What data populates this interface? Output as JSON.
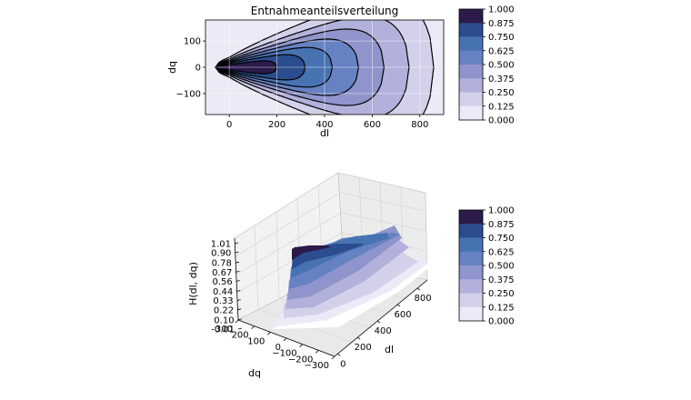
{
  "chart_data": [
    {
      "type": "contourf",
      "title": "Entnahmeanteilsverteilung",
      "xlabel": "dl",
      "ylabel": "dq",
      "xlim": [
        -100,
        900
      ],
      "ylim": [
        -180,
        180
      ],
      "xticks": [
        0,
        200,
        400,
        600,
        800
      ],
      "yticks": [
        -100,
        0,
        100
      ],
      "xtick_labels": [
        "0",
        "200",
        "400",
        "600",
        "800"
      ],
      "ytick_labels": [
        "−100",
        "0",
        "100"
      ],
      "grid": true,
      "levels": [
        0.0,
        0.125,
        0.25,
        0.375,
        0.5,
        0.625,
        0.75,
        0.875,
        1.0
      ],
      "colorbar": {
        "tick_labels": [
          "1.000",
          "0.875",
          "0.750",
          "0.625",
          "0.500",
          "0.375",
          "0.250",
          "0.125",
          "0.000"
        ]
      }
    },
    {
      "type": "surface3d",
      "xlabel": "dl",
      "ylabel": "dq",
      "zlabel": "H(dl, dq)",
      "xticks": [
        0,
        200,
        400,
        600,
        800
      ],
      "xtick_labels": [
        "0",
        "200",
        "400",
        "600",
        "800"
      ],
      "yticks": [
        300,
        200,
        100,
        0,
        -100,
        -200,
        -300
      ],
      "ytick_labels": [
        "300",
        "200",
        "100",
        "0",
        "−100",
        "−200",
        "−300"
      ],
      "zticks": [
        1.01,
        0.9,
        0.78,
        0.67,
        0.56,
        0.44,
        0.33,
        0.22,
        0.1,
        -0.01
      ],
      "ztick_labels": [
        "1.01",
        "0.90",
        "0.78",
        "0.67",
        "0.56",
        "0.44",
        "0.33",
        "0.22",
        "0.10",
        "-0.01"
      ],
      "levels": [
        0.0,
        0.125,
        0.25,
        0.375,
        0.5,
        0.625,
        0.75,
        0.875,
        1.0
      ],
      "colorbar": {
        "tick_labels": [
          "1.000",
          "0.875",
          "0.750",
          "0.625",
          "0.500",
          "0.375",
          "0.250",
          "0.125",
          "0.000"
        ]
      }
    }
  ],
  "colors": {
    "levels": [
      "#ffffff",
      "#eceaf6",
      "#d3d1ea",
      "#b2b1dc",
      "#8f95cc",
      "#6682c2",
      "#4873b3",
      "#2b4c8e",
      "#2b1a4a"
    ]
  }
}
